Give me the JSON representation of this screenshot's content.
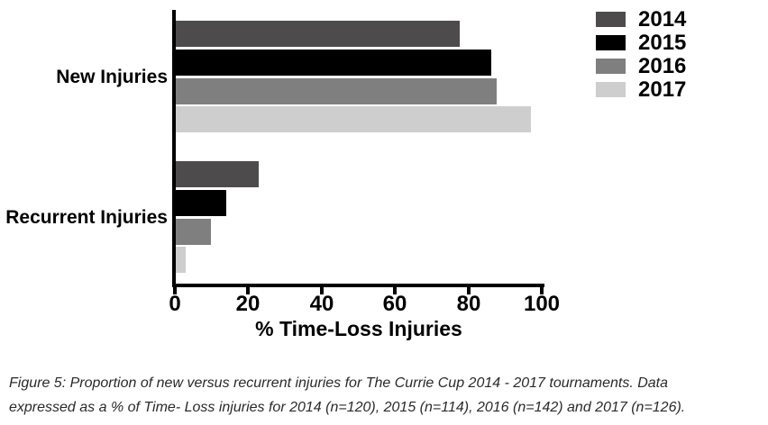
{
  "chart_data": {
    "type": "bar",
    "orientation": "horizontal",
    "title": "",
    "xlabel": "% Time-Loss Injuries",
    "ylabel": "",
    "xlim": [
      0,
      100
    ],
    "x_ticks": [
      0,
      20,
      40,
      60,
      80,
      100
    ],
    "grid": false,
    "legend_position": "top-right",
    "categories": [
      "New Injuries",
      "Recurrent Injuries"
    ],
    "series": [
      {
        "name": "2014",
        "color": "#4d4b4c",
        "values": [
          77.5,
          22.5
        ]
      },
      {
        "name": "2015",
        "color": "#000000",
        "values": [
          86.0,
          13.8
        ]
      },
      {
        "name": "2016",
        "color": "#7f7f7f",
        "values": [
          87.5,
          9.5
        ]
      },
      {
        "name": "2017",
        "color": "#cecece",
        "values": [
          96.8,
          2.8
        ]
      }
    ]
  },
  "caption": {
    "lines": [
      "Figure 5: Proportion of new versus recurrent injuries for The Currie Cup 2014 - 2017 tournaments. Data",
      "expressed as a % of Time- Loss injuries for 2014 (n=120), 2015 (n=114), 2016 (n=142) and 2017 (n=126)."
    ]
  }
}
